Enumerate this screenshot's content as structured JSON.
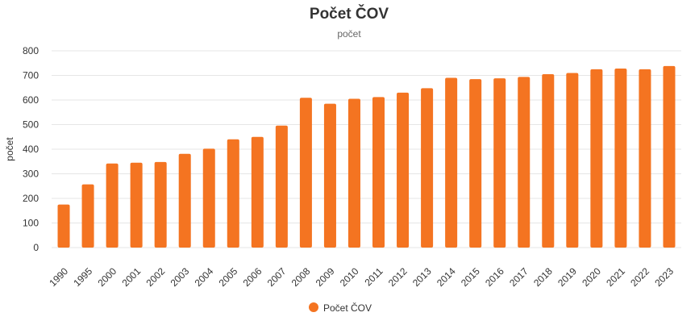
{
  "chart_data": {
    "type": "bar",
    "title": "Počet ČOV",
    "subtitle": "počet",
    "ylabel": "počet",
    "xlabel": "",
    "ylim": [
      0,
      800
    ],
    "yticks": [
      0,
      100,
      200,
      300,
      400,
      500,
      600,
      700,
      800
    ],
    "grid": true,
    "legend_position": "bottom-center",
    "bar_color": "#f47421",
    "categories": [
      "1990",
      "1995",
      "2000",
      "2001",
      "2002",
      "2003",
      "2004",
      "2005",
      "2006",
      "2007",
      "2008",
      "2009",
      "2010",
      "2011",
      "2012",
      "2013",
      "2014",
      "2015",
      "2016",
      "2017",
      "2018",
      "2019",
      "2020",
      "2021",
      "2022",
      "2023"
    ],
    "series": [
      {
        "name": "Počet ČOV",
        "values": [
          175,
          257,
          342,
          345,
          348,
          381,
          402,
          440,
          450,
          496,
          609,
          585,
          605,
          612,
          630,
          648,
          690,
          685,
          688,
          694,
          705,
          710,
          725,
          728,
          725,
          738
        ]
      }
    ]
  }
}
